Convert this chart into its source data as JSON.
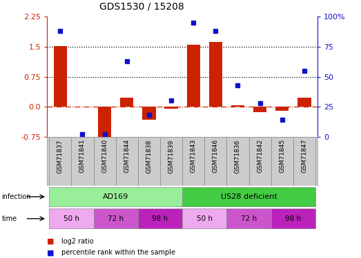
{
  "title": "GDS1530 / 15208",
  "samples": [
    "GSM71837",
    "GSM71841",
    "GSM71840",
    "GSM71844",
    "GSM71838",
    "GSM71839",
    "GSM71843",
    "GSM71846",
    "GSM71836",
    "GSM71842",
    "GSM71845",
    "GSM71847"
  ],
  "log2_ratio": [
    1.52,
    0.0,
    -0.85,
    0.22,
    -0.33,
    -0.05,
    1.55,
    1.62,
    0.04,
    -0.14,
    -0.1,
    0.22
  ],
  "percentile_rank": [
    88,
    2,
    2,
    63,
    18,
    30,
    95,
    88,
    43,
    28,
    14,
    55
  ],
  "bar_color": "#CC2200",
  "dot_color": "#1111CC",
  "left_ylim": [
    -0.75,
    2.25
  ],
  "right_ylim": [
    0,
    100
  ],
  "left_yticks": [
    -0.75,
    0.0,
    0.75,
    1.5,
    2.25
  ],
  "right_yticks": [
    0,
    25,
    50,
    75,
    100
  ],
  "hlines": [
    0.75,
    1.5
  ],
  "ad169_color": "#99EE99",
  "us28_color": "#44CC44",
  "time_colors": [
    "#EEAAEE",
    "#CC55CC",
    "#BB22BB"
  ],
  "time_labels": [
    "50 h",
    "72 h",
    "98 h",
    "50 h",
    "72 h",
    "98 h"
  ],
  "time_starts": [
    0,
    2,
    4,
    6,
    8,
    10
  ],
  "time_widths": [
    2,
    2,
    2,
    2,
    2,
    2
  ],
  "label_gray": "#cccccc"
}
